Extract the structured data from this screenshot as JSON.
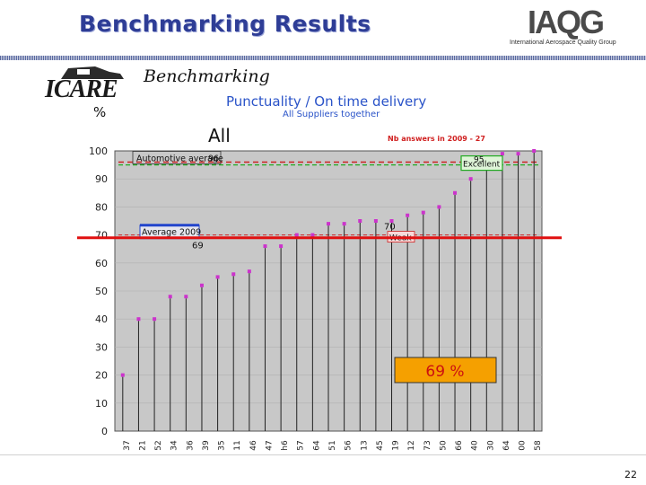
{
  "header": {
    "title": "Benchmarking Results",
    "logo_text": "IAQG",
    "logo_subtitle": "International Aerospace Quality Group"
  },
  "brand": {
    "icare_text": "ICARE",
    "script_text": "Benchmarking"
  },
  "labels": {
    "percent_unit": "%",
    "population": "All",
    "nb_answers": "Nb answers in   2009   -     27",
    "page_number": "22"
  },
  "colors": {
    "title": "#2e3d96",
    "chart_title": "#2a53c8",
    "plot_bg": "#c8c8c8",
    "point": "#cc33cc",
    "red_line": "#e01010",
    "annotation_bg": "#f5a000"
  },
  "chart_data": {
    "type": "scatter",
    "title": "Punctuality / On time delivery",
    "subtitle": "All Suppliers together",
    "ylabel": "%",
    "ylim": [
      0,
      100
    ],
    "yticks": [
      "0",
      "10",
      "20",
      "30",
      "40",
      "50",
      "60",
      "70",
      "80",
      "90",
      "100"
    ],
    "categories": [
      "37",
      "21",
      "52",
      "34",
      "36",
      "39",
      "35",
      "11",
      "46",
      "47",
      "h6",
      "57",
      "64",
      "51",
      "56",
      "13",
      "45",
      "19",
      "12",
      "73",
      "50",
      "66",
      "40",
      "30",
      "64",
      "00",
      "58"
    ],
    "values": [
      20,
      40,
      40,
      48,
      48,
      52,
      55,
      56,
      57,
      66,
      66,
      70,
      70,
      74,
      74,
      75,
      75,
      75,
      77,
      78,
      80,
      85,
      90,
      94,
      99,
      99,
      100
    ],
    "reference_lines": [
      {
        "name": "Automotive average",
        "value": 96,
        "label_value": "96"
      },
      {
        "name": "Excellent",
        "value": 95,
        "label_value": "95"
      },
      {
        "name": "Average 2009",
        "value": 69,
        "label_value": "69"
      },
      {
        "name": "Weak",
        "value": 70,
        "label_value": "70"
      }
    ],
    "highlight": {
      "value": 69,
      "text": "69 %"
    },
    "grid": true
  }
}
